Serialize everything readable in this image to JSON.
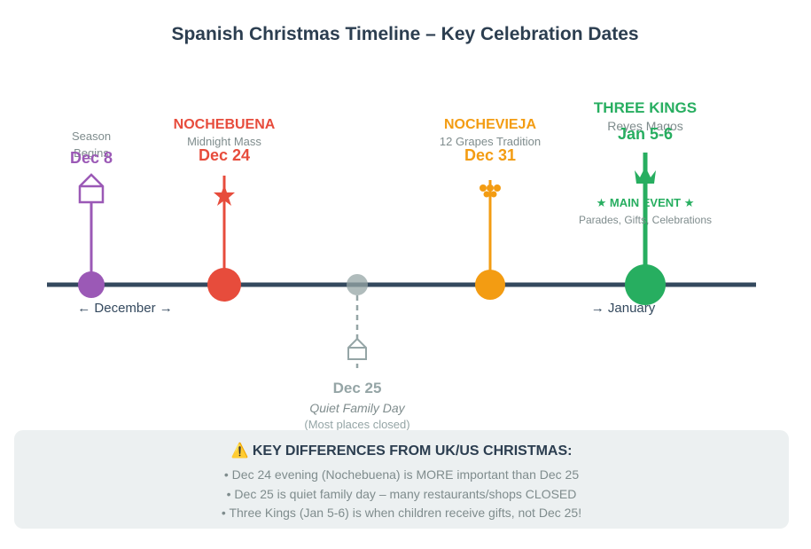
{
  "title": "Spanish Christmas Timeline – Key Celebration Dates",
  "colors": {
    "axis": "#34495e",
    "season": "#9b59b6",
    "nochebuena": "#e74c3c",
    "christmas": "#95a5a6",
    "nochevieja": "#f39c12",
    "kings": "#27ae60"
  },
  "events": {
    "season": {
      "label_line1": "Season",
      "label_line2": "Begins",
      "date": "Dec 8",
      "icon": "house-icon"
    },
    "nochebuena": {
      "name": "NOCHEBUENA",
      "subtitle": "Midnight Mass",
      "date": "Dec 24",
      "icon": "star-icon"
    },
    "christmas": {
      "date": "Dec 25",
      "subtitle": "Quiet Family Day",
      "note": "(Most places closed)",
      "icon": "house-icon"
    },
    "nochevieja": {
      "name": "NOCHEVIEJA",
      "subtitle": "12 Grapes Tradition",
      "date": "Dec 31",
      "icon": "grapes-icon"
    },
    "kings": {
      "name": "THREE KINGS",
      "subtitle": "Reyes Magos",
      "date": "Jan 5-6",
      "badge": "★ MAIN EVENT ★",
      "detail": "Parades, Gifts, Celebrations",
      "icon": "crown-icon"
    }
  },
  "months": {
    "december": "← December →",
    "january": "→ January"
  },
  "info": {
    "heading": "⚠️ KEY DIFFERENCES FROM UK/US CHRISTMAS:",
    "items": [
      "• Dec 24 evening (Nochebuena) is MORE important than Dec 25",
      "• Dec 25 is quiet family day – many restaurants/shops CLOSED",
      "• Three Kings (Jan 5-6) is when children receive gifts, not Dec 25!"
    ]
  }
}
